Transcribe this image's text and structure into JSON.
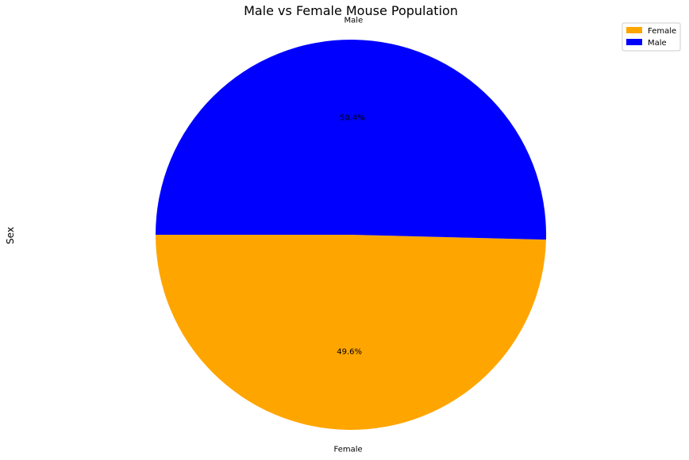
{
  "chart_data": {
    "type": "pie",
    "title": "Male vs Female Mouse Population",
    "ylabel": "Sex",
    "categories": [
      "Female",
      "Male"
    ],
    "values": [
      49.6,
      50.4
    ],
    "labels": [
      "49.6%",
      "50.4%"
    ],
    "colors": [
      "#FFA500",
      "#0000FF"
    ],
    "start_angle_deg": 180,
    "legend": {
      "placement": "top-right",
      "entries": [
        "Female",
        "Male"
      ]
    }
  }
}
